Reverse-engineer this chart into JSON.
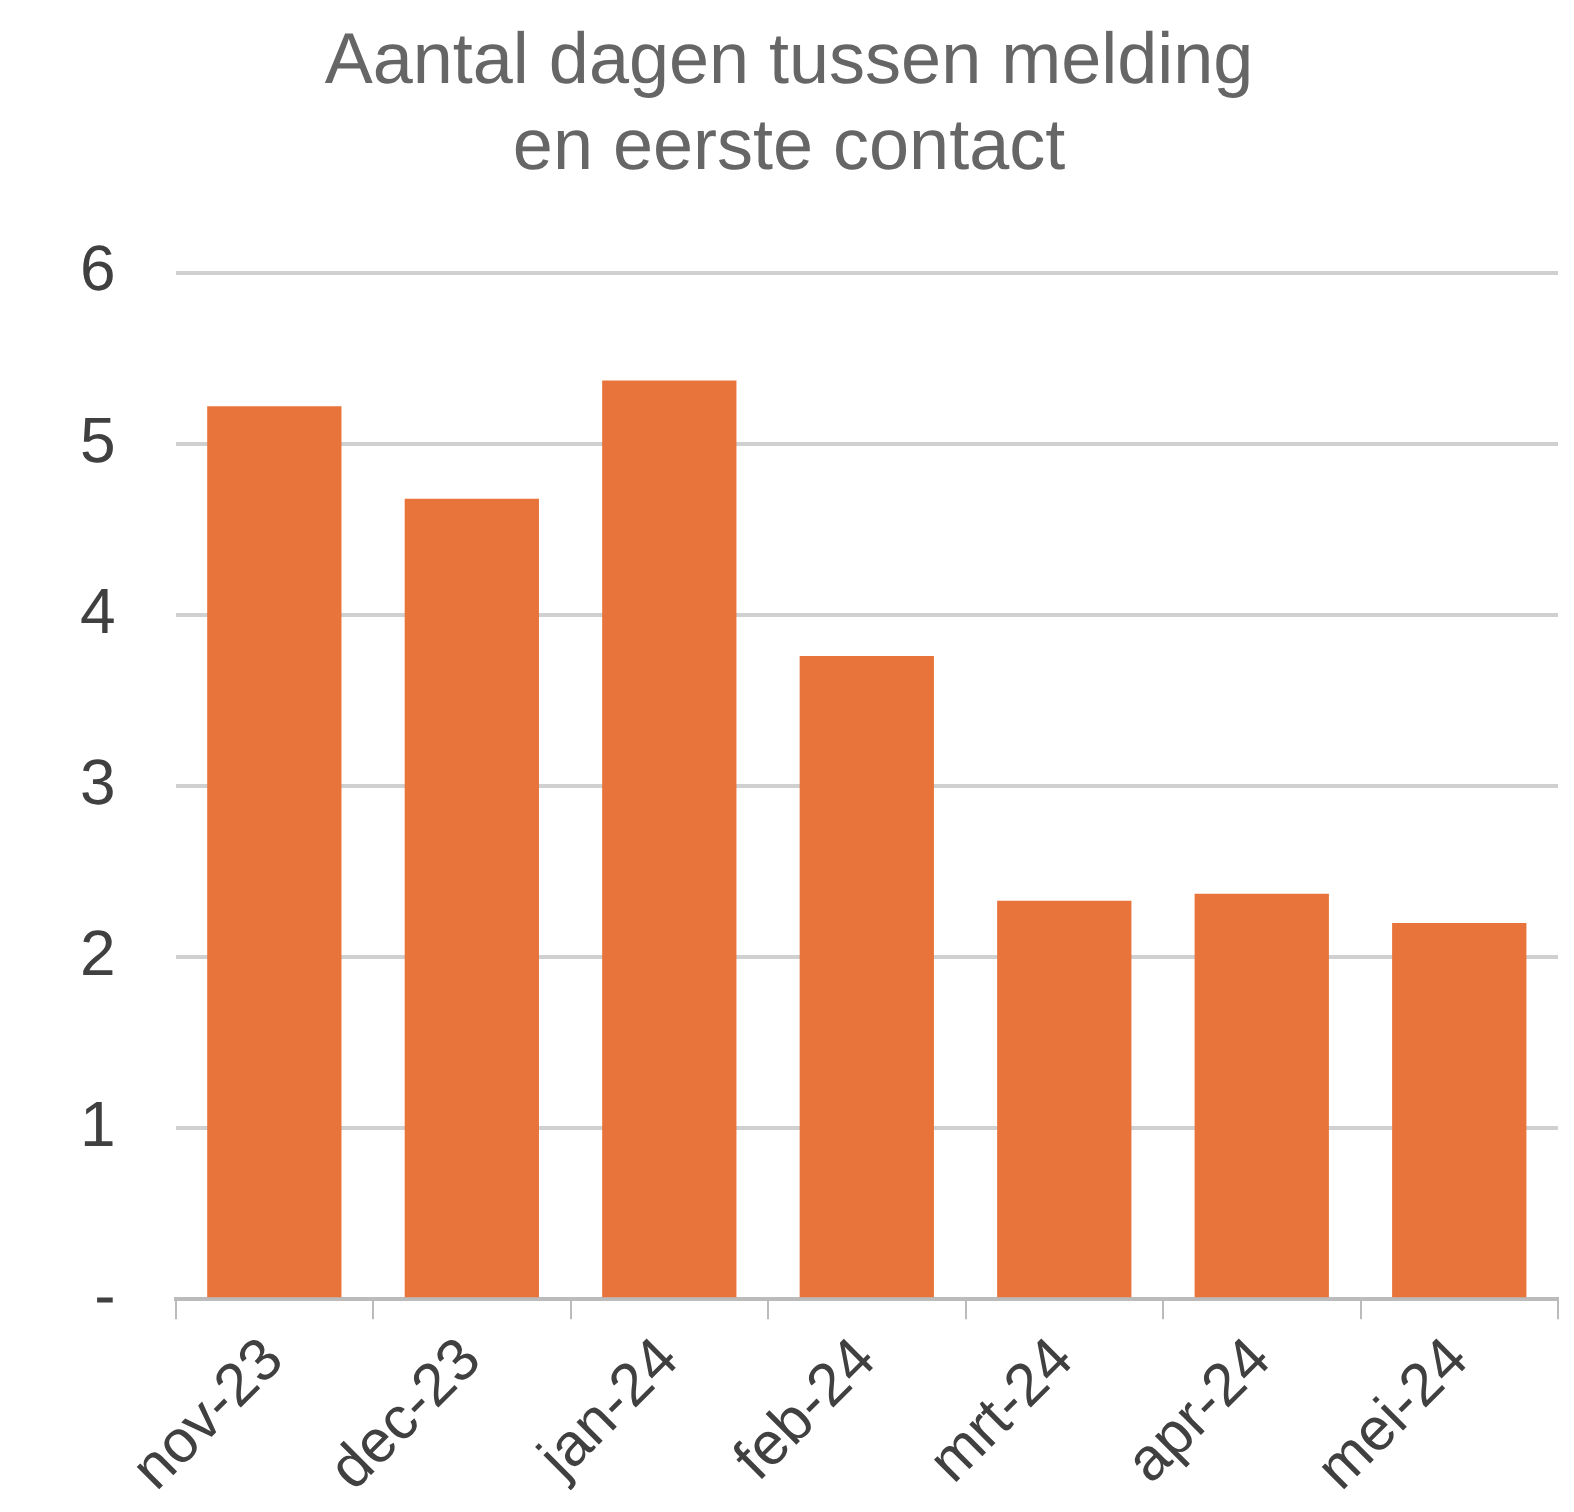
{
  "chart_data": {
    "type": "bar",
    "title": "Aantal dagen tussen melding en eerste contact",
    "categories": [
      "nov-23",
      "dec-23",
      "jan-24",
      "feb-24",
      "mrt-24",
      "apr-24",
      "mei-24"
    ],
    "values": [
      5.22,
      4.68,
      5.37,
      3.76,
      2.33,
      2.37,
      2.2
    ],
    "color": "#e8743b",
    "ylim": [
      0,
      6
    ],
    "yticks": [
      {
        "value": 0,
        "label": "-"
      },
      1,
      2,
      3,
      4,
      5,
      6
    ],
    "grid": "y",
    "legend": false
  }
}
